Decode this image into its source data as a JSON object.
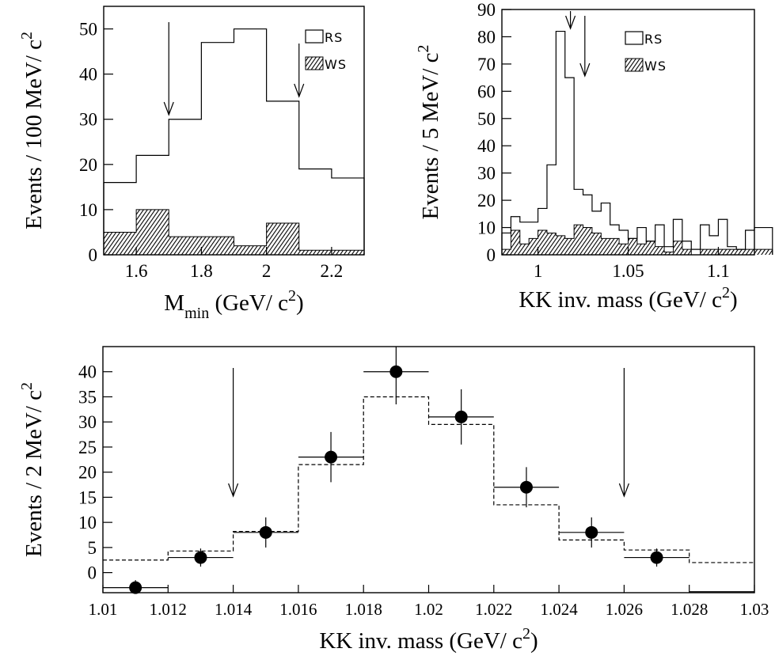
{
  "chart_data": [
    {
      "id": "tl",
      "type": "histogram",
      "xlabel": "M",
      "xlabel_sub": "min",
      "xlabel_tail": " (GeV/ c",
      "xlabel_sup": "2",
      "xlabel_end": ")",
      "ylabel": "Events / 100 MeV/ c",
      "ylabel_sup": "2",
      "xlim": [
        1.5,
        2.3
      ],
      "ylim": [
        0,
        55
      ],
      "xticks": [
        "1.6",
        "1.8",
        "2",
        "2.2"
      ],
      "xtick_values": [
        1.6,
        1.8,
        2.0,
        2.2
      ],
      "yticks": [
        "0",
        "10",
        "20",
        "30",
        "40",
        "50"
      ],
      "ytick_values": [
        0,
        10,
        20,
        30,
        40,
        50
      ],
      "bin_edges": [
        1.5,
        1.6,
        1.7,
        1.8,
        1.9,
        2.0,
        2.1,
        2.2,
        2.3
      ],
      "series": [
        {
          "name": "RS",
          "style": "open",
          "values": [
            16,
            22,
            30,
            47,
            50,
            34,
            19,
            17
          ]
        },
        {
          "name": "WS",
          "style": "hatched",
          "values": [
            5,
            10,
            4,
            4,
            2,
            7,
            1,
            1
          ]
        }
      ],
      "arrows": [
        1.7,
        2.1
      ],
      "legend": {
        "placement": "top-right",
        "entries": [
          "RS",
          "WS"
        ]
      }
    },
    {
      "id": "tr",
      "type": "histogram",
      "xlabel": "KK inv. mass (GeV/ c",
      "xlabel_sup": "2",
      "xlabel_end": ")",
      "ylabel": "Events / 5 MeV/ c",
      "ylabel_sup": "2",
      "xlim": [
        0.98,
        1.12
      ],
      "ylim": [
        0,
        90
      ],
      "xticks": [
        "1",
        "1.05",
        "1.1"
      ],
      "xtick_values": [
        1.0,
        1.05,
        1.1
      ],
      "yticks": [
        "0",
        "10",
        "20",
        "30",
        "40",
        "50",
        "60",
        "70",
        "80",
        "90"
      ],
      "ytick_values": [
        0,
        10,
        20,
        30,
        40,
        50,
        60,
        70,
        80,
        90
      ],
      "bin_start": 0.98,
      "bin_width": 0.005,
      "series": [
        {
          "name": "RS",
          "style": "open",
          "values": [
            8,
            14,
            12,
            12,
            17,
            33,
            82,
            65,
            24,
            22,
            16,
            19,
            11,
            9,
            6,
            10,
            5,
            11,
            3,
            13,
            5,
            2,
            11,
            7,
            13,
            3,
            2,
            9,
            10,
            10
          ]
        },
        {
          "name": "WS",
          "style": "hatched",
          "values": [
            2,
            9,
            4,
            6,
            9,
            8,
            7,
            6,
            11,
            10,
            8,
            6,
            6,
            4,
            6,
            4,
            5,
            3,
            1,
            5,
            2,
            0,
            2,
            2,
            2,
            2,
            2,
            2,
            2,
            2
          ]
        }
      ],
      "arrows": [
        1.018,
        1.026
      ],
      "legend": {
        "placement": "top-right",
        "entries": [
          "RS",
          "WS"
        ]
      }
    },
    {
      "id": "bot",
      "type": "scatter",
      "xlabel": "KK inv. mass (GeV/ c",
      "xlabel_sup": "2",
      "xlabel_end": ")",
      "ylabel": "Events / 2 MeV/ c",
      "ylabel_sup": "2",
      "xlim": [
        1.01,
        1.03
      ],
      "ylim": [
        -4,
        45
      ],
      "xticks": [
        "1.01",
        "1.012",
        "1.014",
        "1.016",
        "1.018",
        "1.02",
        "1.022",
        "1.024",
        "1.026",
        "1.028",
        "1.03"
      ],
      "xtick_values": [
        1.01,
        1.012,
        1.014,
        1.016,
        1.018,
        1.02,
        1.022,
        1.024,
        1.026,
        1.028,
        1.03
      ],
      "yticks": [
        "0",
        "5",
        "10",
        "15",
        "20",
        "25",
        "30",
        "35",
        "40"
      ],
      "ytick_values": [
        0,
        5,
        10,
        15,
        20,
        25,
        30,
        35,
        40
      ],
      "points": {
        "x": [
          1.011,
          1.013,
          1.015,
          1.017,
          1.019,
          1.021,
          1.023,
          1.025,
          1.027
        ],
        "y": [
          -3,
          3,
          8,
          23,
          40,
          31,
          17,
          8,
          3
        ],
        "yerr_low": [
          1.5,
          1.8,
          3,
          5,
          6.5,
          5.5,
          4,
          3,
          1.8
        ],
        "yerr_high": [
          1.5,
          1.8,
          3,
          5,
          6.5,
          5.5,
          4,
          3,
          1.8
        ],
        "xerr": 0.001
      },
      "mc_bin_edges": [
        1.01,
        1.012,
        1.014,
        1.016,
        1.018,
        1.02,
        1.022,
        1.024,
        1.026,
        1.028,
        1.03
      ],
      "mc_values": [
        2.5,
        4.3,
        8.2,
        21.5,
        35.0,
        29.5,
        13.5,
        6.5,
        4.5,
        2.0
      ],
      "extra_bin": {
        "x0": 1.028,
        "x1": 1.03,
        "y": -3.8
      },
      "arrows": [
        1.014,
        1.026
      ]
    }
  ]
}
